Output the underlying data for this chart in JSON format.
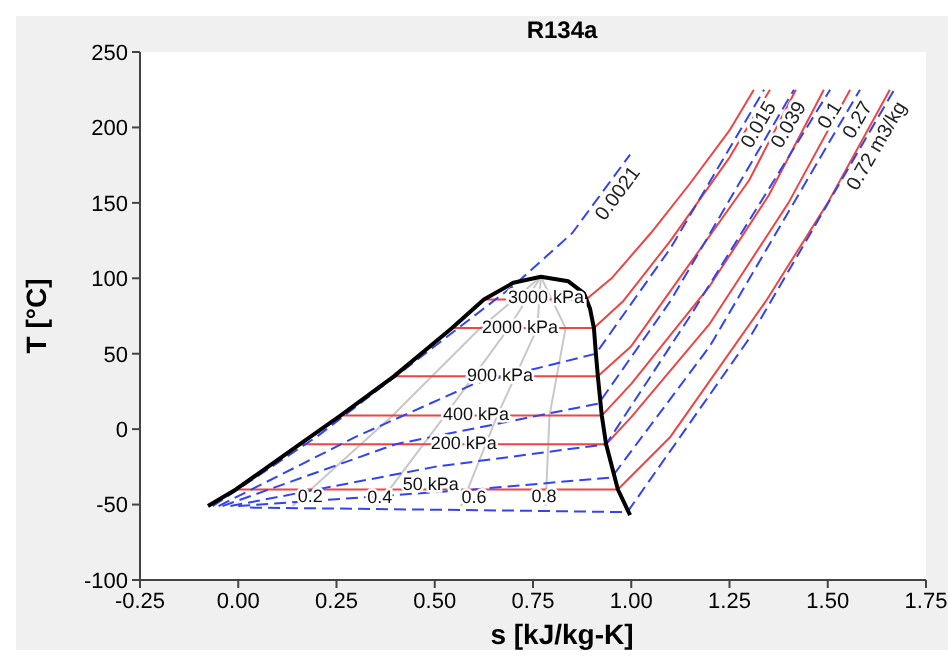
{
  "chart_data": {
    "type": "line",
    "title": "R134a",
    "xlabel": "s [kJ/kg-K]",
    "ylabel": "T [°C]",
    "xlim": [
      -0.25,
      1.75
    ],
    "xticks": [
      {
        "value": -0.25,
        "label": "-0.25"
      },
      {
        "value": 0,
        "label": "0.00"
      },
      {
        "value": 0.25,
        "label": "0.25"
      },
      {
        "value": 0.5,
        "label": "0.50"
      },
      {
        "value": 0.75,
        "label": "0.75"
      },
      {
        "value": 1,
        "label": "1.00"
      },
      {
        "value": 1.25,
        "label": "1.25"
      },
      {
        "value": 1.5,
        "label": "1.50"
      },
      {
        "value": 1.75,
        "label": "1.75"
      }
    ],
    "ylim": [
      -100,
      250
    ],
    "yticks": [
      -100,
      -50,
      0,
      50,
      100,
      150,
      200,
      250
    ],
    "grid": false,
    "legend": false,
    "marker": "none",
    "line_style": "solid",
    "series": [
      {
        "color": "#c8c8c8",
        "x": [
          0.138,
          0.393,
          0.616,
          0.77
        ],
        "values": [
          -51,
          9,
          67,
          101
        ]
      },
      {
        "color": "#c8c8c8",
        "x": [
          0.353,
          0.526,
          0.688,
          0.77
        ],
        "values": [
          -51,
          9,
          67,
          101
        ]
      },
      {
        "color": "#c8c8c8",
        "x": [
          0.567,
          0.659,
          0.761,
          0.77
        ],
        "values": [
          -51,
          9,
          67,
          101
        ]
      },
      {
        "color": "#c8c8c8",
        "x": [
          0.782,
          0.792,
          0.833,
          0.77
        ],
        "values": [
          -51,
          9,
          67,
          101
        ]
      },
      {
        "color": "#ee4444",
        "x": [
          0.625,
          0.885,
          0.95,
          1.05,
          1.15,
          1.25,
          1.312
        ],
        "values": [
          86,
          86,
          100,
          130,
          163,
          198,
          225
        ]
      },
      {
        "color": "#ee4444",
        "x": [
          0.544,
          0.905,
          0.98,
          1.1,
          1.25,
          1.353
        ],
        "values": [
          67,
          67,
          85,
          125,
          180,
          225
        ]
      },
      {
        "color": "#ee4444",
        "x": [
          0.396,
          0.915,
          1.0,
          1.15,
          1.3,
          1.419
        ],
        "values": [
          35,
          35,
          55,
          110,
          165,
          225
        ]
      },
      {
        "color": "#ee4444",
        "x": [
          0.26,
          0.925,
          1.0,
          1.2,
          1.35,
          1.49
        ],
        "values": [
          9,
          9,
          30,
          95,
          155,
          225
        ]
      },
      {
        "color": "#ee4444",
        "x": [
          0.157,
          0.936,
          1.0,
          1.2,
          1.4,
          1.557
        ],
        "values": [
          -10,
          -10,
          8,
          70,
          150,
          225
        ]
      },
      {
        "color": "#ee4444",
        "x": [
          -0.006,
          0.966,
          1.1,
          1.343,
          1.5,
          1.658
        ],
        "values": [
          -40,
          -40,
          -5,
          85,
          150,
          225
        ]
      },
      {
        "name": "0.0021",
        "color": "#3344ee",
        "line_style": "dashed",
        "x": [
          -0.065,
          0.2,
          0.45,
          0.7,
          0.85,
          0.997
        ],
        "values": [
          -51,
          -5,
          45,
          95,
          130,
          182
        ]
      },
      {
        "name": "0.015",
        "color": "#3344ee",
        "line_style": "dashed",
        "x": [
          -0.05,
          0.3,
          0.6,
          0.91,
          1.1,
          1.338
        ],
        "values": [
          -51,
          -5,
          30,
          50,
          120,
          225
        ]
      },
      {
        "name": "0.039",
        "color": "#3344ee",
        "line_style": "dashed",
        "x": [
          -0.04,
          0.4,
          0.917,
          1.1,
          1.414
        ],
        "values": [
          -51,
          -10,
          17,
          85,
          225
        ]
      },
      {
        "name": "0.1",
        "color": "#3344ee",
        "line_style": "dashed",
        "x": [
          -0.02,
          0.5,
          0.936,
          1.15,
          1.506
        ],
        "values": [
          -51,
          -25,
          -10,
          75,
          225
        ]
      },
      {
        "name": "0.27",
        "color": "#3344ee",
        "line_style": "dashed",
        "x": [
          0.0,
          0.6,
          0.95,
          1.2,
          1.582
        ],
        "values": [
          -51,
          -40,
          -32,
          55,
          225
        ]
      },
      {
        "name": "0.72 m3/kg",
        "color": "#3344ee",
        "line_style": "dashed",
        "x": [
          0.03,
          0.7,
          0.99,
          1.3,
          1.669
        ],
        "values": [
          -52,
          -54,
          -55,
          60,
          225
        ]
      },
      {
        "color": "#000000",
        "x": [
          -0.077,
          -0.006,
          0.157,
          0.26,
          0.396,
          0.544,
          0.625,
          0.7,
          0.77,
          0.84,
          0.88,
          0.895,
          0.905,
          0.91,
          0.915,
          0.925,
          0.936,
          0.966,
          0.997
        ],
        "values": [
          -51,
          -40,
          -10,
          9,
          35,
          67,
          86,
          97,
          101,
          98,
          90,
          80,
          67,
          50,
          35,
          9,
          -10,
          -40,
          -57
        ]
      }
    ],
    "annotations": [
      {
        "text": "3000 kPa",
        "x": 0.783,
        "y": 87
      },
      {
        "text": "2000 kPa",
        "x": 0.717,
        "y": 67
      },
      {
        "text": "900 kPa",
        "x": 0.666,
        "y": 35
      },
      {
        "text": "400 kPa",
        "x": 0.605,
        "y": 9
      },
      {
        "text": "200 kPa",
        "x": 0.574,
        "y": -10
      },
      {
        "text": "50 kPa",
        "x": 0.49,
        "y": -37
      },
      {
        "text": "0.2",
        "x": 0.183,
        "y": -45
      },
      {
        "text": "0.4",
        "x": 0.36,
        "y": -46
      },
      {
        "text": "0.6",
        "x": 0.6,
        "y": -46
      },
      {
        "text": "0.8",
        "x": 0.778,
        "y": -45
      }
    ]
  }
}
